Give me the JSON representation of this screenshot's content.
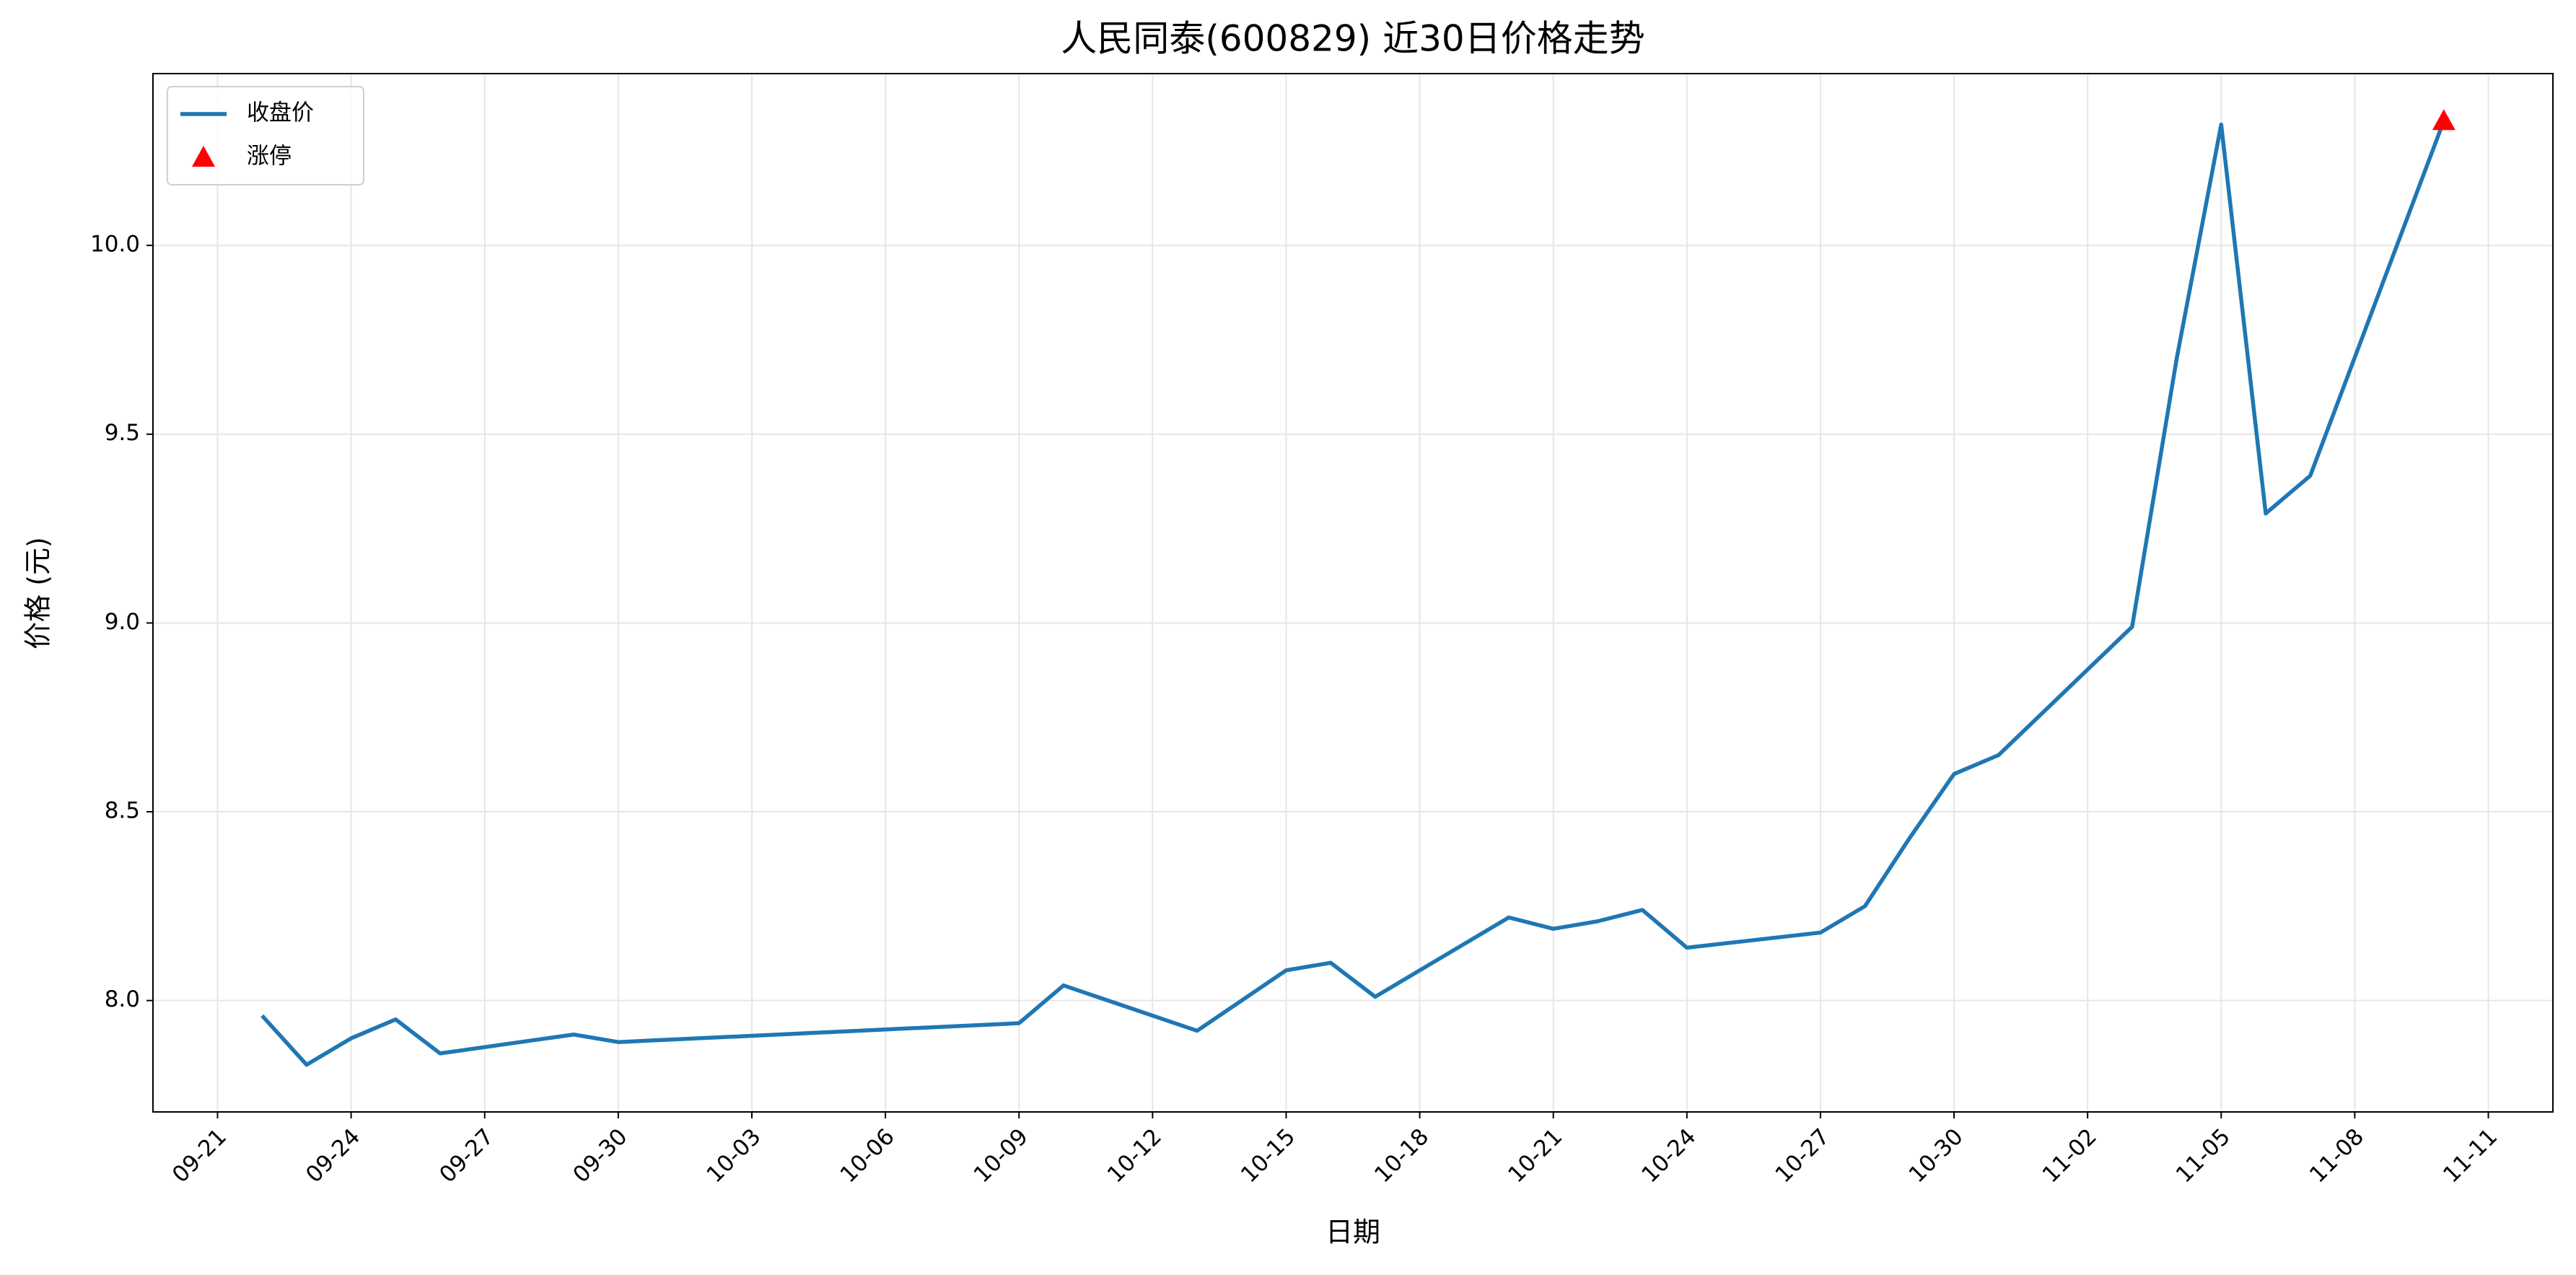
{
  "chart_data": {
    "type": "line",
    "title": "人民同泰(600829) 近30日价格走势",
    "xlabel": "日期",
    "ylabel": "价格 (元)",
    "x": [
      "09-22",
      "09-23",
      "09-24",
      "09-25",
      "09-26",
      "09-29",
      "09-30",
      "10-09",
      "10-10",
      "10-13",
      "10-15",
      "10-16",
      "10-17",
      "10-20",
      "10-21",
      "10-22",
      "10-23",
      "10-24",
      "10-27",
      "10-28",
      "10-29",
      "10-30",
      "10-31",
      "11-03",
      "11-04",
      "11-05",
      "11-06",
      "11-07",
      "11-10"
    ],
    "series": [
      {
        "name": "收盘价",
        "color": "#1f77b4",
        "type": "line",
        "values": [
          7.96,
          7.83,
          7.9,
          7.95,
          7.86,
          7.91,
          7.89,
          7.94,
          8.04,
          7.92,
          8.08,
          8.1,
          8.01,
          8.22,
          8.19,
          8.21,
          8.24,
          8.14,
          8.18,
          8.25,
          8.43,
          8.6,
          8.65,
          8.99,
          9.7,
          10.32,
          9.29,
          9.39,
          10.33
        ]
      },
      {
        "name": "涨停",
        "color": "#ff0000",
        "type": "scatter",
        "x": [
          "11-10"
        ],
        "values": [
          10.33
        ]
      }
    ],
    "xlim": [
      "09-22",
      "11-10"
    ],
    "xticks": [
      "09-21",
      "09-24",
      "09-27",
      "09-30",
      "10-03",
      "10-06",
      "10-09",
      "10-12",
      "10-15",
      "10-18",
      "10-21",
      "10-24",
      "10-27",
      "10-30",
      "11-02",
      "11-05",
      "11-08",
      "11-11"
    ],
    "ylim": [
      7.705,
      10.455
    ],
    "yticks": [
      {
        "value": 8,
        "label": "8.0"
      },
      {
        "value": 8.5,
        "label": "8.5"
      },
      {
        "value": 9,
        "label": "9.0"
      },
      {
        "value": 9.5,
        "label": "9.5"
      },
      {
        "value": 10,
        "label": "10.0"
      }
    ],
    "grid": true,
    "legend": "upper left"
  }
}
